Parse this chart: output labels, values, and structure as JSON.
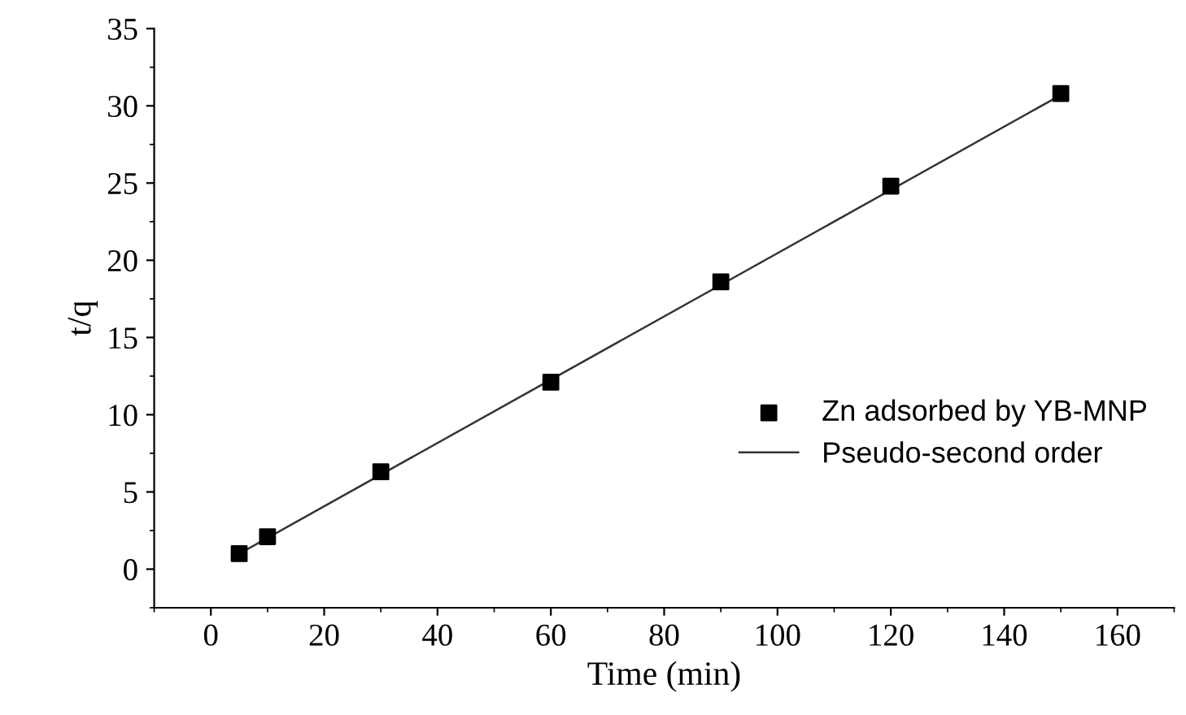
{
  "chart_data": {
    "type": "line",
    "xlabel": "Time (min)",
    "ylabel": "t/q",
    "xlim": [
      -10,
      170
    ],
    "xticks": [
      0,
      20,
      40,
      60,
      80,
      100,
      120,
      140,
      160
    ],
    "ylim": [
      -2.5,
      35
    ],
    "yticks": [
      0,
      5,
      10,
      15,
      20,
      25,
      30,
      35
    ],
    "grid": false,
    "legend": "right",
    "series": [
      {
        "name": "Zn adsorbed by YB-MNP",
        "type": "scatter",
        "marker": "square",
        "color": "#000000",
        "x": [
          5,
          10,
          30,
          60,
          90,
          120,
          150
        ],
        "values": [
          1.0,
          2.1,
          6.3,
          12.1,
          18.6,
          24.8,
          30.8
        ]
      },
      {
        "name": "Pseudo-second order",
        "color": "#333333",
        "line_style": "solid",
        "x": [
          5,
          150
        ],
        "values": [
          1.0,
          30.7
        ]
      }
    ]
  }
}
